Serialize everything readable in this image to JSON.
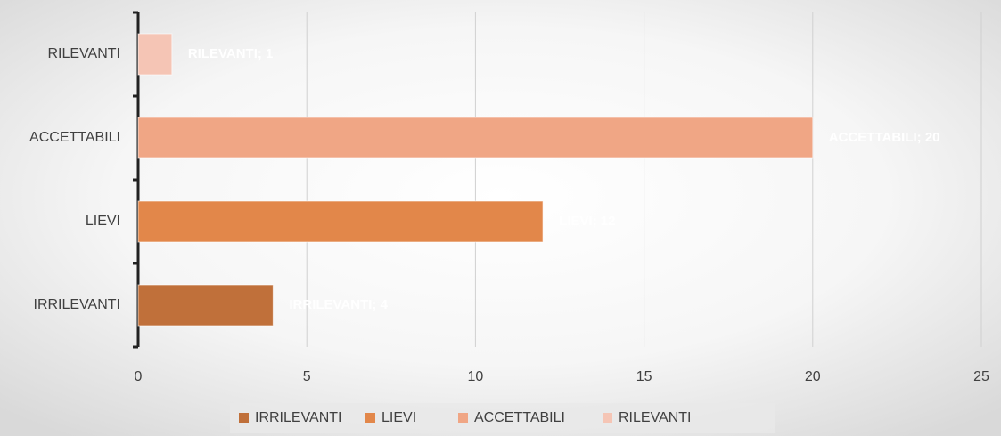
{
  "chart_data": {
    "type": "bar",
    "orientation": "horizontal",
    "categories": [
      "IRRILEVANTI",
      "LIEVI",
      "ACCETTABILI",
      "RILEVANTI"
    ],
    "series": [
      {
        "name": "IRRILEVANTI",
        "color": "#c0703a",
        "values": [
          4,
          null,
          null,
          null
        ],
        "value_labels": [
          "IRRILEVANTI; 4",
          null,
          null,
          null
        ]
      },
      {
        "name": "LIEVI",
        "color": "#e2874a",
        "values": [
          null,
          12,
          null,
          null
        ],
        "value_labels": [
          null,
          "LIEVI; 12",
          null,
          null
        ]
      },
      {
        "name": "ACCETTABILI",
        "color": "#f0a685",
        "values": [
          null,
          null,
          20,
          null
        ],
        "value_labels": [
          null,
          null,
          "ACCETTABILI; 20",
          null
        ]
      },
      {
        "name": "RILEVANTI",
        "color": "#f5c5b5",
        "values": [
          null,
          null,
          null,
          1
        ],
        "value_labels": [
          null,
          null,
          null,
          "RILEVANTI; 1"
        ]
      }
    ],
    "xlim": [
      0,
      25
    ],
    "xticks": [
      0,
      5,
      10,
      15,
      20,
      25
    ],
    "grid": true,
    "legend": "bottom"
  }
}
